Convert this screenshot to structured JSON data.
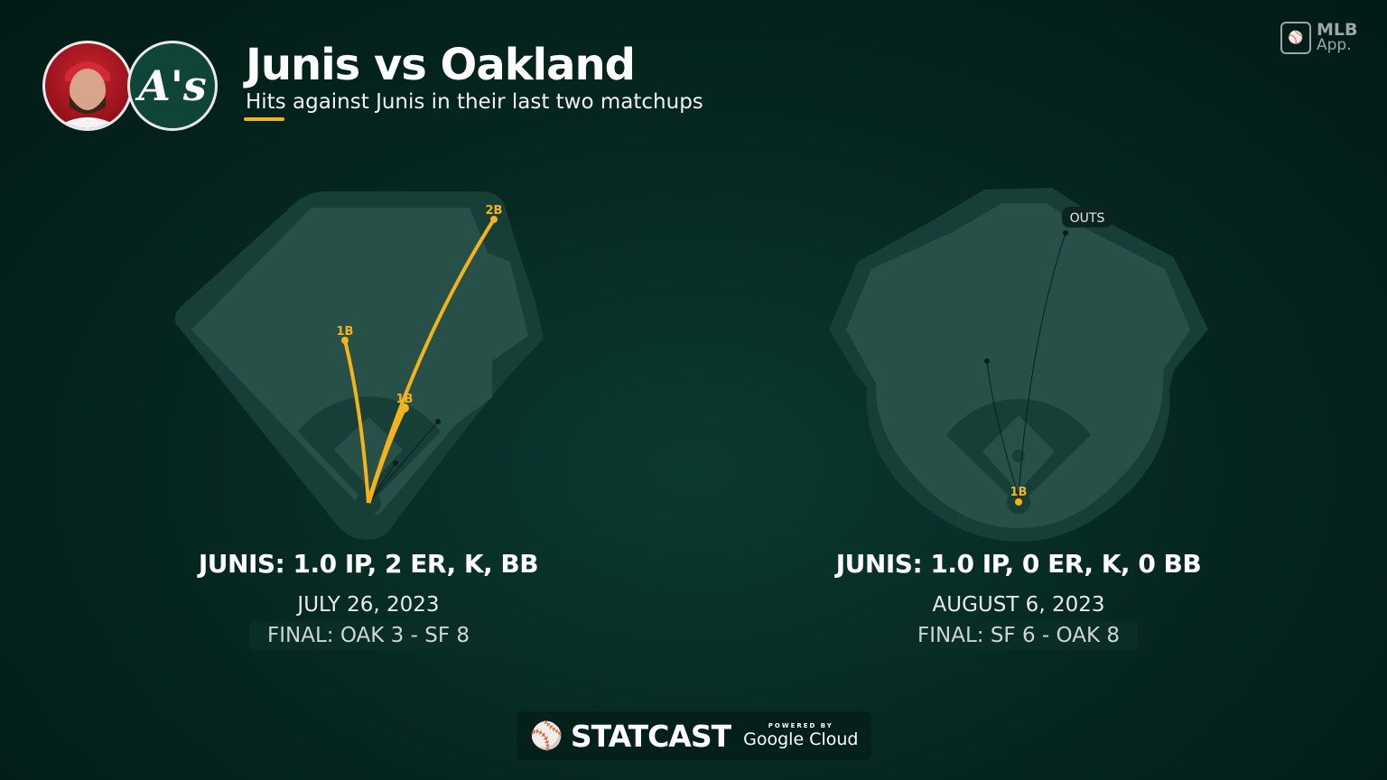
{
  "header": {
    "title": "Junis vs Oakland",
    "subtitle": "Hits against Junis in their last two matchups",
    "team_logo_text": "A's",
    "app_badge": {
      "line1": "MLB",
      "line2": "App."
    }
  },
  "colors": {
    "accent": "#f2b31c",
    "background": "#05261f",
    "field": "#275049",
    "field_border": "#173f37"
  },
  "games": [
    {
      "stat_line": "JUNIS: 1.0 IP, 2 ER, K, BB",
      "date": "JULY 26, 2023",
      "final": "FINAL: OAK 3 - SF 8",
      "hit_labels": [
        "1B",
        "1B",
        "2B"
      ]
    },
    {
      "stat_line": "JUNIS: 1.0 IP, 0 ER, K, 0 BB",
      "date": "AUGUST 6, 2023",
      "final": "FINAL: SF 6 - OAK 8",
      "hit_labels": [
        "1B"
      ],
      "outs_label": "OUTS"
    }
  ],
  "footer": {
    "brand": "STATCAST",
    "powered_by": "POWERED BY",
    "partner": "Google Cloud"
  }
}
